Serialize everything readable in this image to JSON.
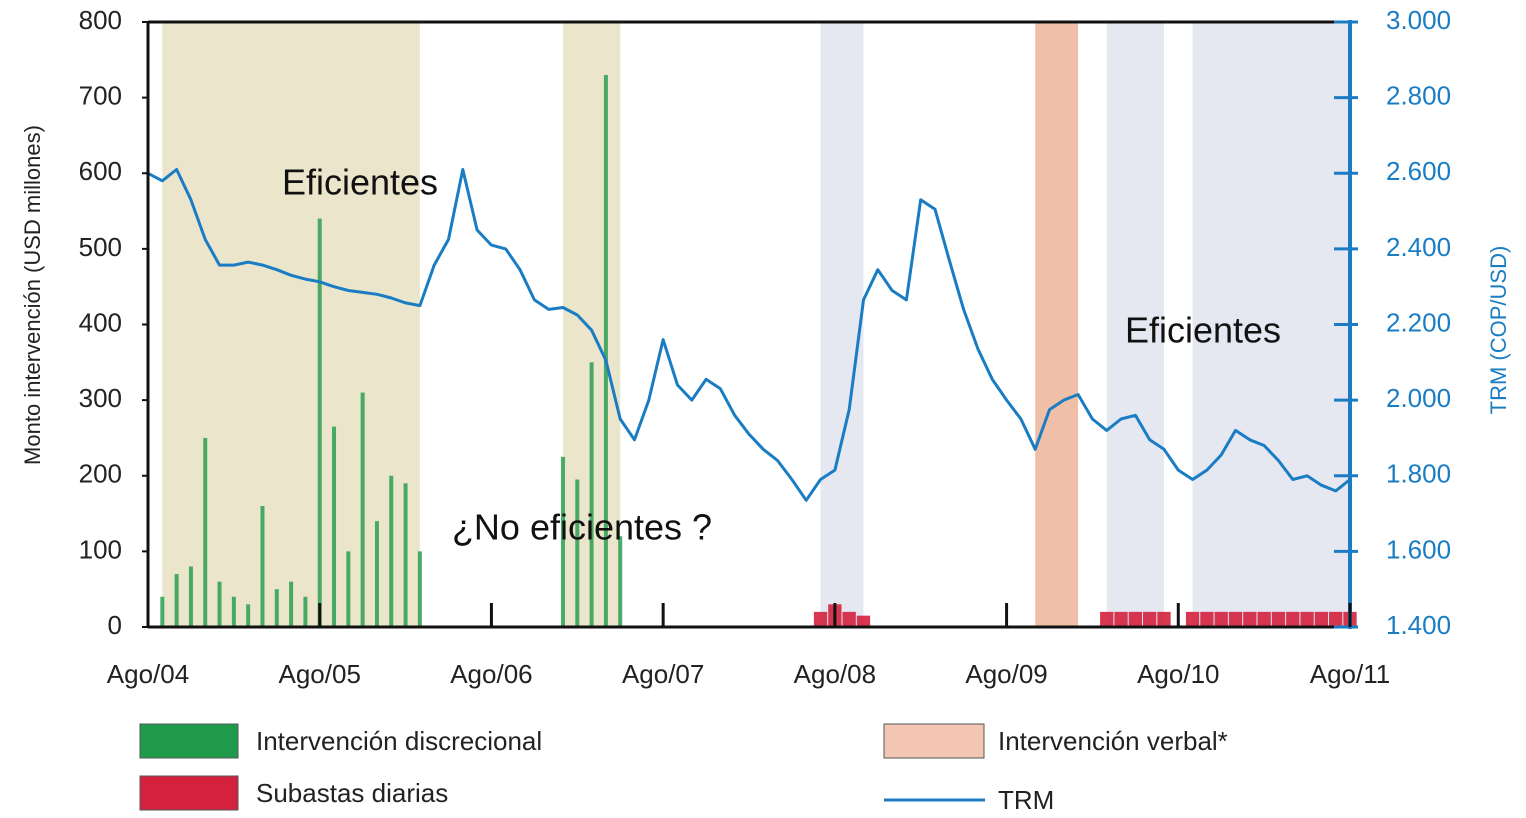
{
  "chart_data": {
    "type": "combo",
    "ylabel": "Monto intervención (USD millones)",
    "y2label": "TRM (COP/USD)",
    "xlim": [
      "2004-08",
      "2011-08"
    ],
    "xticks": [
      {
        "value": "2004-08",
        "label": "Ago/04"
      },
      {
        "value": "2005-08",
        "label": "Ago/05"
      },
      {
        "value": "2006-08",
        "label": "Ago/06"
      },
      {
        "value": "2007-08",
        "label": "Ago/07"
      },
      {
        "value": "2008-08",
        "label": "Ago/08"
      },
      {
        "value": "2009-08",
        "label": "Ago/09"
      },
      {
        "value": "2010-08",
        "label": "Ago/10"
      },
      {
        "value": "2011-08",
        "label": "Ago/11"
      }
    ],
    "ylim": [
      0,
      800
    ],
    "yticks": [
      0,
      100,
      200,
      300,
      400,
      500,
      600,
      700,
      800
    ],
    "y2lim": [
      1400,
      3000
    ],
    "y2ticks": [
      {
        "value": 1400,
        "label": "1.400"
      },
      {
        "value": 1600,
        "label": "1.600"
      },
      {
        "value": 1800,
        "label": "1.800"
      },
      {
        "value": 2000,
        "label": "2.000"
      },
      {
        "value": 2200,
        "label": "2.200"
      },
      {
        "value": 2400,
        "label": "2.400"
      },
      {
        "value": 2600,
        "label": "2.600"
      },
      {
        "value": 2800,
        "label": "2.800"
      },
      {
        "value": 3000,
        "label": "3.000"
      }
    ],
    "periods": [
      {
        "start": "2004-09",
        "end": "2006-03",
        "color": "#ebe6cb"
      },
      {
        "start": "2007-01",
        "end": "2007-05",
        "color": "#ebe6cb"
      },
      {
        "start": "2008-07",
        "end": "2008-10",
        "color": "#e5e7f1"
      },
      {
        "start": "2009-10",
        "end": "2010-01",
        "color": "#efbfa8"
      },
      {
        "start": "2010-03",
        "end": "2010-07",
        "color": "#e5e7f1"
      },
      {
        "start": "2010-09",
        "end": "2011-08",
        "color": "#e5e7f1"
      }
    ],
    "annotations": [
      "Eficientes",
      "¿No eficientes ?",
      "Eficientes"
    ],
    "series": [
      {
        "name": "Intervención discrecional",
        "type": "bar",
        "color": "#1f9a4a",
        "x": [
          "2004-09",
          "2004-10",
          "2004-11",
          "2004-12",
          "2005-01",
          "2005-02",
          "2005-03",
          "2005-04",
          "2005-05",
          "2005-06",
          "2005-07",
          "2005-08",
          "2005-09",
          "2005-10",
          "2005-11",
          "2005-12",
          "2006-01",
          "2006-02",
          "2006-03",
          "2007-01",
          "2007-02",
          "2007-03",
          "2007-04",
          "2007-05"
        ],
        "values": [
          40,
          70,
          80,
          250,
          60,
          40,
          30,
          160,
          50,
          60,
          40,
          540,
          265,
          100,
          310,
          140,
          200,
          190,
          100,
          225,
          195,
          350,
          730,
          120
        ]
      },
      {
        "name": "Subastas diarias",
        "type": "bar",
        "color": "#d4213d",
        "x": [
          "2008-07",
          "2008-08",
          "2008-09",
          "2008-10",
          "2010-03",
          "2010-04",
          "2010-05",
          "2010-06",
          "2010-07",
          "2010-09",
          "2010-10",
          "2010-11",
          "2010-12",
          "2011-01",
          "2011-02",
          "2011-03",
          "2011-04",
          "2011-05",
          "2011-06",
          "2011-07",
          "2011-08"
        ],
        "values": [
          20,
          30,
          20,
          15,
          20,
          20,
          20,
          20,
          20,
          20,
          20,
          20,
          20,
          20,
          20,
          20,
          20,
          20,
          20,
          20,
          20
        ]
      },
      {
        "name": "Intervención verbal*",
        "type": "legend-box",
        "color": "#f2c6b2"
      },
      {
        "name": "TRM",
        "type": "line",
        "axis": "y2",
        "color": "#1a7dc4",
        "x": [
          "2004-08",
          "2004-09",
          "2004-10",
          "2004-11",
          "2004-12",
          "2005-01",
          "2005-02",
          "2005-03",
          "2005-04",
          "2005-05",
          "2005-06",
          "2005-07",
          "2005-08",
          "2005-09",
          "2005-10",
          "2005-11",
          "2005-12",
          "2006-01",
          "2006-02",
          "2006-03",
          "2006-04",
          "2006-05",
          "2006-06",
          "2006-07",
          "2006-08",
          "2006-09",
          "2006-10",
          "2006-11",
          "2006-12",
          "2007-01",
          "2007-02",
          "2007-03",
          "2007-04",
          "2007-05",
          "2007-06",
          "2007-07",
          "2007-08",
          "2007-09",
          "2007-10",
          "2007-11",
          "2007-12",
          "2008-01",
          "2008-02",
          "2008-03",
          "2008-04",
          "2008-05",
          "2008-06",
          "2008-07",
          "2008-08",
          "2008-09",
          "2008-10",
          "2008-11",
          "2008-12",
          "2009-01",
          "2009-02",
          "2009-03",
          "2009-04",
          "2009-05",
          "2009-06",
          "2009-07",
          "2009-08",
          "2009-09",
          "2009-10",
          "2009-11",
          "2009-12",
          "2010-01",
          "2010-02",
          "2010-03",
          "2010-04",
          "2010-05",
          "2010-06",
          "2010-07",
          "2010-08",
          "2010-09",
          "2010-10",
          "2010-11",
          "2010-12",
          "2011-01",
          "2011-02",
          "2011-03",
          "2011-04",
          "2011-05",
          "2011-06",
          "2011-07",
          "2011-08"
        ],
        "values": [
          2600,
          2580,
          2610,
          2530,
          2425,
          2357,
          2357,
          2365,
          2357,
          2345,
          2330,
          2320,
          2313,
          2300,
          2290,
          2285,
          2280,
          2270,
          2257,
          2250,
          2357,
          2425,
          2610,
          2450,
          2410,
          2400,
          2345,
          2265,
          2240,
          2245,
          2225,
          2185,
          2105,
          1950,
          1895,
          2000,
          2160,
          2040,
          2000,
          2055,
          2030,
          1960,
          1910,
          1870,
          1840,
          1790,
          1735,
          1790,
          1815,
          1975,
          2265,
          2345,
          2290,
          2265,
          2530,
          2505,
          2370,
          2240,
          2135,
          2055,
          2000,
          1950,
          1870,
          1975,
          2000,
          2015,
          1950,
          1920,
          1950,
          1960,
          1895,
          1870,
          1815,
          1790,
          1815,
          1855,
          1920,
          1895,
          1880,
          1840,
          1790,
          1800,
          1775,
          1760,
          1790
        ]
      }
    ]
  }
}
